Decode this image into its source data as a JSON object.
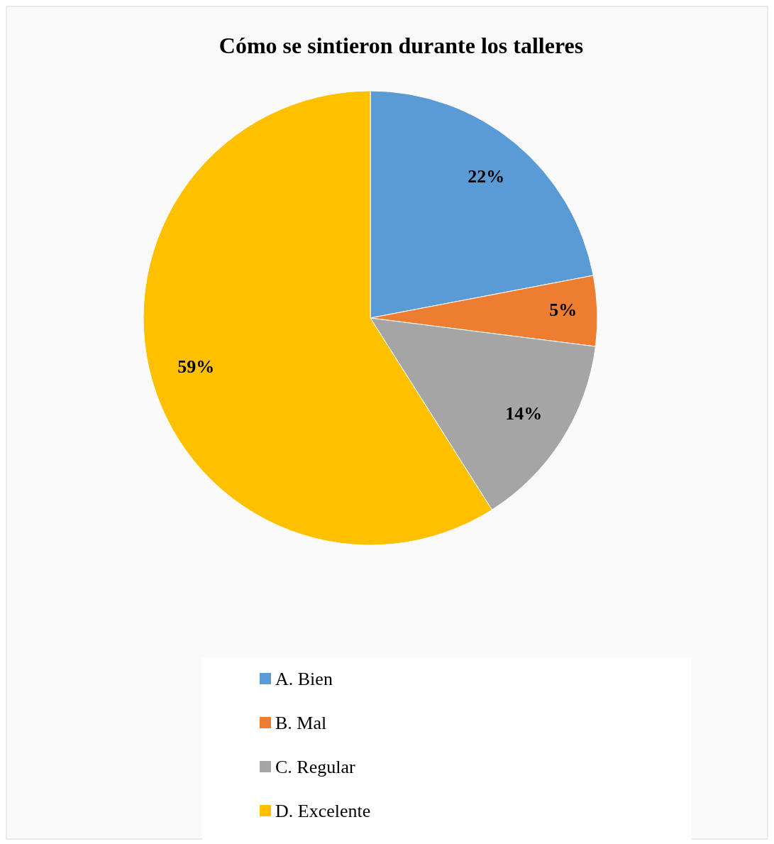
{
  "chart_data": {
    "type": "pie",
    "title": "Cómo se sintieron durante los talleres",
    "categories": [
      "A. Bien",
      "B. Mal",
      "C. Regular",
      "D. Excelente"
    ],
    "values": [
      22,
      5,
      14,
      59
    ],
    "colors": [
      "#5b9bd5",
      "#ed7d31",
      "#a5a5a5",
      "#ffc000"
    ],
    "value_labels": [
      "22%",
      "5%",
      "14%",
      "59%"
    ],
    "legend": "bottom"
  }
}
